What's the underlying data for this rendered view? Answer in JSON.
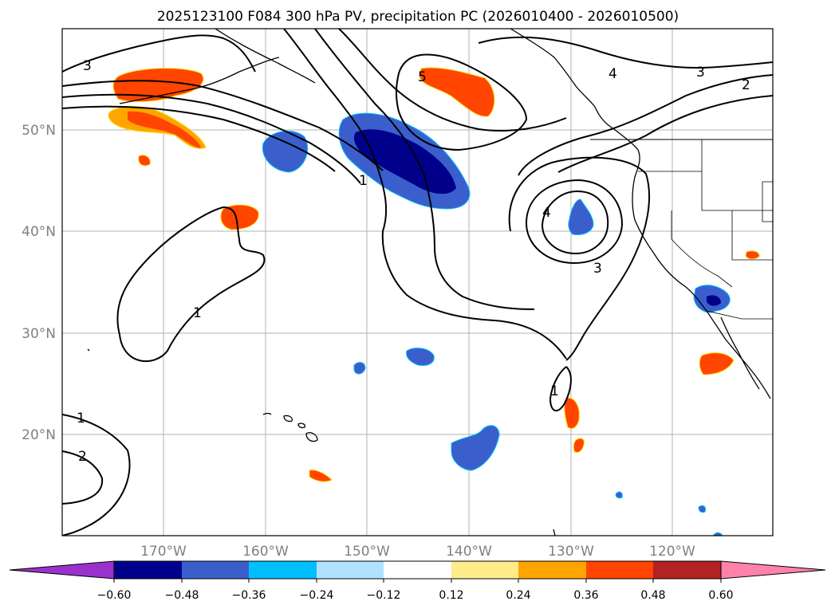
{
  "figure": {
    "title": "2025123100 F084 300 hPa PV, precipitation PC (2026010400 - 2026010500)"
  },
  "map": {
    "longitude_labels": [
      "170°W",
      "160°W",
      "150°W",
      "140°W",
      "130°W",
      "120°W"
    ],
    "latitude_labels": [
      "50°N",
      "40°N",
      "30°N",
      "20°N"
    ],
    "contour_labels": [
      "3",
      "5",
      "4",
      "3",
      "2",
      "1",
      "4",
      "3",
      "1",
      "1",
      "1",
      "2"
    ],
    "grid_color": "#b0b0b0",
    "coastline_color": "#000000"
  },
  "colorbar": {
    "tick_labels": [
      "−0.60",
      "−0.48",
      "−0.36",
      "−0.24",
      "−0.12",
      "0.12",
      "0.24",
      "0.36",
      "0.48",
      "0.60"
    ],
    "colors": [
      "#9932cc",
      "#00008b",
      "#3a5fcd",
      "#00bfff",
      "#b0e2ff",
      "#ffffff",
      "#ffec8b",
      "#ffa500",
      "#ff4500",
      "#b22222",
      "#ff82ab"
    ]
  }
}
